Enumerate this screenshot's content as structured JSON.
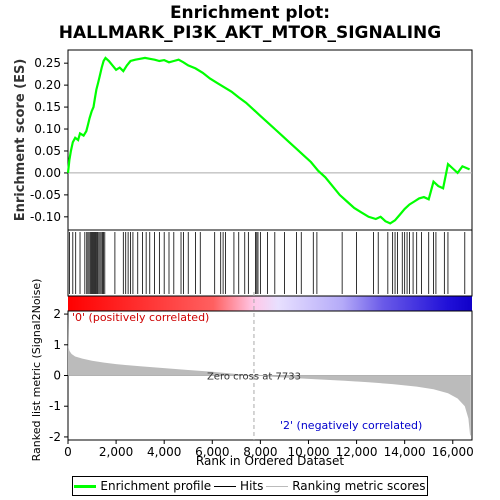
{
  "title_line1": "Enrichment plot:",
  "title_line2": "HALLMARK_PI3K_AKT_MTOR_SIGNALING",
  "legend": {
    "items": [
      {
        "label": "Enrichment profile",
        "color": "#00ff00"
      },
      {
        "label": "Hits",
        "color": "#000000"
      },
      {
        "label": "Ranking metric scores",
        "color": "#bbbbbb"
      }
    ]
  },
  "chart_data": [
    {
      "type": "line",
      "name": "enrichment-score",
      "ylabel": "Enrichment score (ES)",
      "ylim": [
        -0.13,
        0.28
      ],
      "xlim": [
        0,
        16800
      ],
      "yticks": [
        -0.1,
        -0.05,
        0.0,
        0.05,
        0.1,
        0.15,
        0.2,
        0.25
      ],
      "ytick_labels": [
        "-0.10",
        "-0.05",
        "0.00",
        "0.05",
        "0.10",
        "0.15",
        "0.20",
        "0.25"
      ],
      "color": "#00ff00",
      "points": [
        [
          0,
          0.0
        ],
        [
          60,
          0.03
        ],
        [
          120,
          0.05
        ],
        [
          200,
          0.07
        ],
        [
          300,
          0.08
        ],
        [
          420,
          0.075
        ],
        [
          500,
          0.09
        ],
        [
          650,
          0.085
        ],
        [
          760,
          0.095
        ],
        [
          830,
          0.11
        ],
        [
          900,
          0.125
        ],
        [
          980,
          0.14
        ],
        [
          1060,
          0.15
        ],
        [
          1120,
          0.17
        ],
        [
          1180,
          0.19
        ],
        [
          1250,
          0.205
        ],
        [
          1320,
          0.22
        ],
        [
          1400,
          0.24
        ],
        [
          1480,
          0.255
        ],
        [
          1560,
          0.262
        ],
        [
          1700,
          0.255
        ],
        [
          1850,
          0.245
        ],
        [
          2000,
          0.235
        ],
        [
          2150,
          0.24
        ],
        [
          2300,
          0.232
        ],
        [
          2450,
          0.245
        ],
        [
          2600,
          0.255
        ],
        [
          2800,
          0.258
        ],
        [
          3000,
          0.26
        ],
        [
          3200,
          0.262
        ],
        [
          3400,
          0.26
        ],
        [
          3600,
          0.258
        ],
        [
          3800,
          0.255
        ],
        [
          4000,
          0.257
        ],
        [
          4200,
          0.252
        ],
        [
          4400,
          0.255
        ],
        [
          4600,
          0.258
        ],
        [
          4800,
          0.252
        ],
        [
          5000,
          0.245
        ],
        [
          5300,
          0.238
        ],
        [
          5600,
          0.228
        ],
        [
          5900,
          0.215
        ],
        [
          6200,
          0.205
        ],
        [
          6500,
          0.195
        ],
        [
          6800,
          0.185
        ],
        [
          7100,
          0.172
        ],
        [
          7400,
          0.16
        ],
        [
          7700,
          0.145
        ],
        [
          8000,
          0.13
        ],
        [
          8300,
          0.115
        ],
        [
          8600,
          0.1
        ],
        [
          8900,
          0.085
        ],
        [
          9200,
          0.07
        ],
        [
          9500,
          0.055
        ],
        [
          9800,
          0.04
        ],
        [
          10100,
          0.025
        ],
        [
          10400,
          0.005
        ],
        [
          10700,
          -0.01
        ],
        [
          11000,
          -0.03
        ],
        [
          11300,
          -0.05
        ],
        [
          11600,
          -0.065
        ],
        [
          11900,
          -0.08
        ],
        [
          12200,
          -0.09
        ],
        [
          12500,
          -0.1
        ],
        [
          12800,
          -0.105
        ],
        [
          13000,
          -0.1
        ],
        [
          13200,
          -0.11
        ],
        [
          13400,
          -0.115
        ],
        [
          13600,
          -0.108
        ],
        [
          13800,
          -0.095
        ],
        [
          14000,
          -0.082
        ],
        [
          14200,
          -0.072
        ],
        [
          14400,
          -0.065
        ],
        [
          14600,
          -0.058
        ],
        [
          14800,
          -0.055
        ],
        [
          15000,
          -0.06
        ],
        [
          15200,
          -0.02
        ],
        [
          15400,
          -0.03
        ],
        [
          15600,
          -0.035
        ],
        [
          15800,
          0.02
        ],
        [
          16000,
          0.01
        ],
        [
          16200,
          0.0
        ],
        [
          16400,
          0.015
        ],
        [
          16700,
          0.008
        ]
      ]
    },
    {
      "type": "hits",
      "name": "hit-positions",
      "color": "#000000",
      "positions": [
        60,
        200,
        320,
        500,
        700,
        780,
        830,
        880,
        930,
        980,
        1020,
        1060,
        1100,
        1140,
        1180,
        1230,
        1280,
        1330,
        1380,
        1430,
        1480,
        1530,
        1950,
        2300,
        2400,
        2500,
        2600,
        2700,
        2900,
        3100,
        3250,
        3400,
        3600,
        3800,
        4000,
        4200,
        4400,
        4700,
        4800,
        5000,
        5300,
        5500,
        6100,
        6350,
        6450,
        6550,
        6900,
        7100,
        7350,
        7500,
        7800,
        7850,
        7900,
        8000,
        8300,
        8600,
        9000,
        9500,
        9700,
        10200,
        10350,
        11400,
        12000,
        12700,
        12900,
        13300,
        13500,
        13600,
        13700,
        13900,
        14000,
        14100,
        14200,
        14350,
        14500,
        14700,
        15000,
        15200,
        15300,
        15650,
        15800,
        16500
      ]
    },
    {
      "type": "heatmap",
      "name": "ranked-list-colorbar",
      "gradient_stops": [
        {
          "pos": 0.0,
          "color": "#ff0000"
        },
        {
          "pos": 0.36,
          "color": "#ff6060"
        },
        {
          "pos": 0.46,
          "color": "#ffc8e8"
        },
        {
          "pos": 0.52,
          "color": "#e8e0ff"
        },
        {
          "pos": 0.68,
          "color": "#b4aaf8"
        },
        {
          "pos": 0.78,
          "color": "#6a5ae8"
        },
        {
          "pos": 0.94,
          "color": "#2010d8"
        },
        {
          "pos": 1.0,
          "color": "#1000c8"
        }
      ],
      "zero_cross": 7733
    },
    {
      "type": "area",
      "name": "ranked-metric",
      "xlabel": "Rank in Ordered Dataset",
      "ylabel": "Ranked list metric (Signal2Noise)",
      "ylim": [
        -2.1,
        2.1
      ],
      "yticks": [
        2,
        1,
        0,
        -1,
        -2
      ],
      "xticks": [
        0,
        2000,
        4000,
        6000,
        8000,
        10000,
        12000,
        14000,
        16000
      ],
      "xtick_labels": [
        "0",
        "2,000",
        "4,000",
        "6,000",
        "8,000",
        "10,000",
        "12,000",
        "14,000",
        "16,000"
      ],
      "fill_color": "#bbbbbb",
      "zero_cross_label": "Zero cross at 7733",
      "pos_label": "'0' (positively correlated)",
      "pos_label_color": "#cc0000",
      "neg_label": "'2' (negatively correlated)",
      "neg_label_color": "#0000cc",
      "points": [
        [
          0,
          2.0
        ],
        [
          15,
          0.95
        ],
        [
          60,
          0.8
        ],
        [
          150,
          0.7
        ],
        [
          300,
          0.62
        ],
        [
          600,
          0.55
        ],
        [
          1000,
          0.48
        ],
        [
          1500,
          0.42
        ],
        [
          2000,
          0.37
        ],
        [
          3000,
          0.3
        ],
        [
          4000,
          0.24
        ],
        [
          5000,
          0.18
        ],
        [
          6000,
          0.12
        ],
        [
          7000,
          0.05
        ],
        [
          7733,
          0.0
        ],
        [
          8500,
          -0.04
        ],
        [
          9500,
          -0.09
        ],
        [
          10500,
          -0.13
        ],
        [
          11500,
          -0.17
        ],
        [
          12500,
          -0.22
        ],
        [
          13500,
          -0.28
        ],
        [
          14500,
          -0.36
        ],
        [
          15200,
          -0.45
        ],
        [
          15800,
          -0.58
        ],
        [
          16200,
          -0.75
        ],
        [
          16500,
          -1.0
        ],
        [
          16650,
          -1.4
        ],
        [
          16720,
          -1.95
        ],
        [
          16750,
          -1.95
        ]
      ]
    }
  ]
}
